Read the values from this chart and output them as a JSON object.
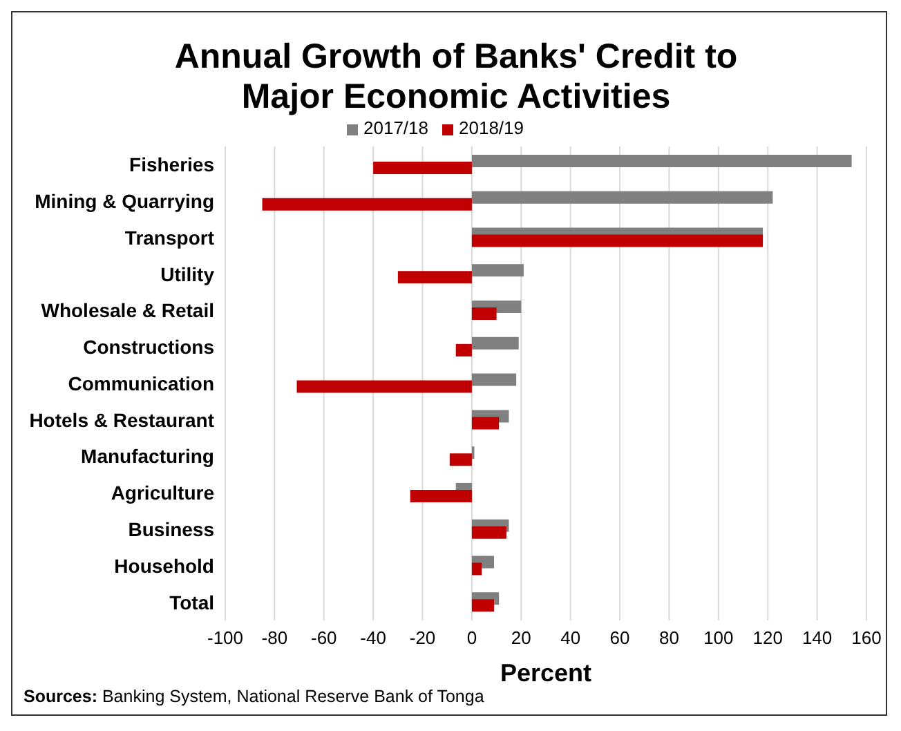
{
  "chart_data": {
    "type": "bar",
    "orientation": "horizontal",
    "title": "Annual Growth of Banks' Credit to Major Economic Activities",
    "xlabel": "Percent",
    "categories": [
      "Fisheries",
      "Mining & Quarrying",
      "Transport",
      "Utility",
      "Wholesale & Retail",
      "Constructions",
      "Communication",
      "Hotels & Restaurant",
      "Manufacturing",
      "Agriculture",
      "Business",
      "Household",
      "Total"
    ],
    "series": [
      {
        "name": "2017/18",
        "color": "#808080",
        "values": [
          154,
          122,
          118,
          21,
          20,
          19,
          18,
          15,
          1,
          -6.5,
          15,
          9,
          11
        ]
      },
      {
        "name": "2018/19",
        "color": "#c00000",
        "values": [
          -40,
          -85,
          118,
          -30,
          10,
          -6.5,
          -71,
          11,
          -9,
          -25,
          14,
          4,
          9
        ]
      }
    ],
    "xlim": [
      -100,
      160
    ],
    "xticks": [
      -100,
      -80,
      -60,
      -40,
      -20,
      0,
      20,
      40,
      60,
      80,
      100,
      120,
      140,
      160
    ],
    "grid": "x",
    "legend": "top",
    "annotations": [
      "Sources: Banking System, National Reserve Bank of Tonga"
    ]
  }
}
